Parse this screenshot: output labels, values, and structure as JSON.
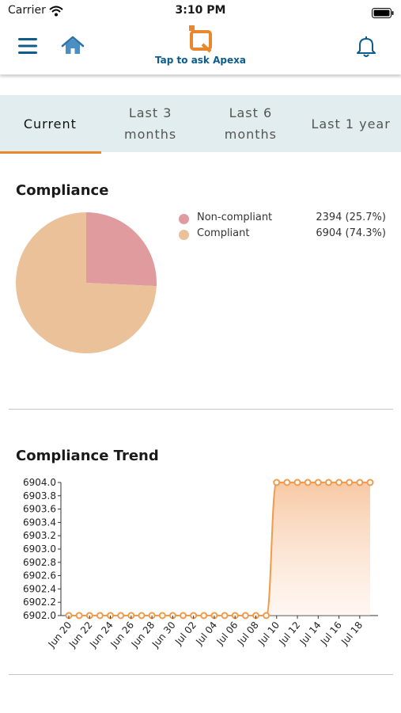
{
  "status_bar": {
    "carrier": "Carrier",
    "time": "3:10 PM"
  },
  "header": {
    "ask_label": "Tap to ask Apexa"
  },
  "tabs": [
    {
      "label": "Current",
      "active": true
    },
    {
      "label": "Last 3 months",
      "active": false
    },
    {
      "label": "Last 6 months",
      "active": false
    },
    {
      "label": "Last 1 year",
      "active": false
    }
  ],
  "compliance": {
    "title": "Compliance",
    "legend": [
      {
        "label": "Non-compliant",
        "value": "2394 (25.7%)",
        "color": "#e09b9e"
      },
      {
        "label": "Compliant",
        "value": "6904 (74.3%)",
        "color": "#ebc199"
      }
    ]
  },
  "trend": {
    "title": "Compliance Trend"
  },
  "colors": {
    "accent": "#e8872e",
    "brand_blue": "#0e5c8c",
    "tab_bg": "#e2edf0"
  },
  "chart_data": [
    {
      "type": "pie",
      "title": "Compliance",
      "categories": [
        "Non-compliant",
        "Compliant"
      ],
      "values": [
        2394,
        6904
      ],
      "percent": [
        25.7,
        74.3
      ],
      "colors": [
        "#e09b9e",
        "#ebc199"
      ],
      "legend_position": "right"
    },
    {
      "type": "area",
      "title": "Compliance Trend",
      "xlabel": "",
      "ylabel": "",
      "x": [
        "Jun 20",
        "Jun 21",
        "Jun 22",
        "Jun 23",
        "Jun 24",
        "Jun 25",
        "Jun 26",
        "Jun 27",
        "Jun 28",
        "Jun 29",
        "Jun 30",
        "Jul 01",
        "Jul 02",
        "Jul 03",
        "Jul 04",
        "Jul 05",
        "Jul 06",
        "Jul 07",
        "Jul 08",
        "Jul 09",
        "Jul 10",
        "Jul 11",
        "Jul 12",
        "Jul 13",
        "Jul 14",
        "Jul 15",
        "Jul 16",
        "Jul 17",
        "Jul 18",
        "Jul 19"
      ],
      "x_tick_labels": [
        "Jun 20",
        "Jun 22",
        "Jun 24",
        "Jun 26",
        "Jun 28",
        "Jun 30",
        "Jul 02",
        "Jul 04",
        "Jul 06",
        "Jul 08",
        "Jul 10",
        "Jul 12",
        "Jul 14",
        "Jul 16",
        "Jul 18"
      ],
      "values": [
        6902,
        6902,
        6902,
        6902,
        6902,
        6902,
        6902,
        6902,
        6902,
        6902,
        6902,
        6902,
        6902,
        6902,
        6902,
        6902,
        6902,
        6902,
        6902,
        6902,
        6904,
        6904,
        6904,
        6904,
        6904,
        6904,
        6904,
        6904,
        6904,
        6904
      ],
      "y_ticks": [
        "6902.0",
        "6902.2",
        "6902.4",
        "6902.6",
        "6902.8",
        "6903.0",
        "6903.2",
        "6903.4",
        "6903.6",
        "6903.8",
        "6904.0"
      ],
      "ylim": [
        6902.0,
        6904.0
      ],
      "grid": false,
      "color": "#f09a4c"
    }
  ]
}
